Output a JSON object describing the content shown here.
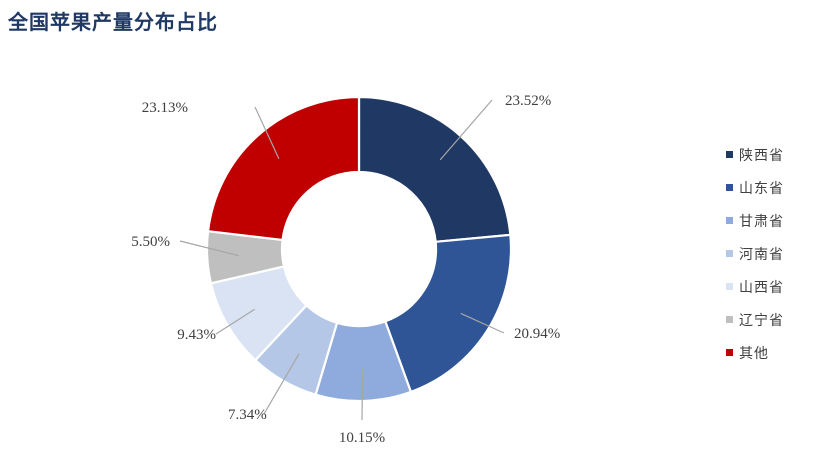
{
  "title": "全国苹果产量分布占比",
  "chart_data": {
    "type": "pie",
    "variant": "donut",
    "title": "全国苹果产量分布占比",
    "legend_position": "right",
    "categories": [
      "陕西省",
      "山东省",
      "甘肃省",
      "河南省",
      "山西省",
      "辽宁省",
      "其他"
    ],
    "values": [
      23.52,
      20.94,
      10.15,
      7.34,
      9.43,
      5.5,
      23.13
    ],
    "labels": [
      "23.52%",
      "20.94%",
      "10.15%",
      "7.34%",
      "9.43%",
      "5.50%",
      "23.13%"
    ],
    "colors": [
      "#1f3864",
      "#2f5597",
      "#8faadc",
      "#b4c7e7",
      "#dae3f3",
      "#bfbfbf",
      "#c00000"
    ]
  }
}
